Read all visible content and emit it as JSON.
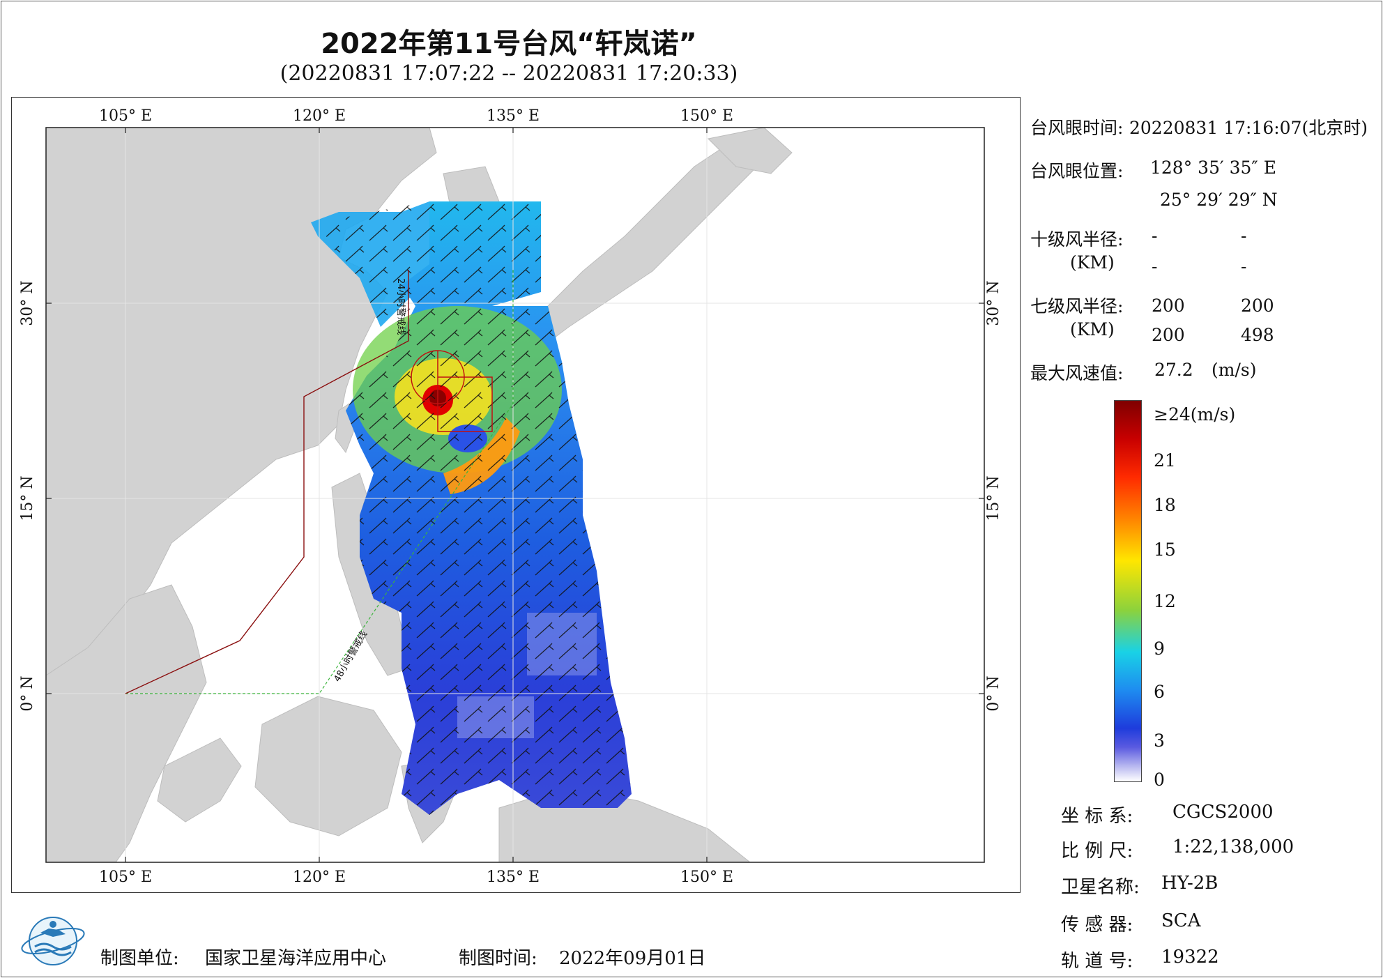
{
  "title": "2022年第11号台风“轩岚诺”",
  "subtitle": "(20220831 17:07:22 -- 20220831 17:20:33)",
  "axes": {
    "lon_ticks": [
      "105° E",
      "120° E",
      "135° E",
      "150° E"
    ],
    "lat_ticks": [
      "30° N",
      "15° N",
      "0° N"
    ]
  },
  "map_labels": {
    "warning_24h": "24小时警戒线",
    "warning_48h": "48小时警戒线"
  },
  "info": {
    "eye_time_label": "台风眼时间:",
    "eye_time_value": "20220831 17:16:07(北京时)",
    "eye_pos_label": "台风眼位置:",
    "eye_lon": "128° 35′ 35″ E",
    "eye_lat": "25° 29′ 29″ N",
    "r10_label": "十级风半径:",
    "km_label": "(KM)",
    "r10_values": [
      "-",
      "-",
      "-",
      "-"
    ],
    "r7_label": "七级风半径:",
    "r7_values": [
      "200",
      "200",
      "200",
      "498"
    ],
    "max_wind_label": "最大风速值:",
    "max_wind_value": "27.2",
    "max_wind_unit": "(m/s)"
  },
  "colorbar": {
    "labels": [
      "≥24(m/s)",
      "21",
      "18",
      "15",
      "12",
      "9",
      "6",
      "3",
      "0"
    ],
    "colors": [
      "#7f0000",
      "#e0000f",
      "#ff7a00",
      "#ffe600",
      "#7cd23c",
      "#19d2e6",
      "#1e8cf0",
      "#1e3cdc",
      "#ffffff"
    ]
  },
  "metadata": {
    "coord_label": "坐 标 系:",
    "coord_value": "CGCS2000",
    "scale_label": "比 例 尺:",
    "scale_value": "1:22,138,000",
    "satellite_label": "卫星名称:",
    "satellite_value": "HY-2B",
    "sensor_label": "传 感 器:",
    "sensor_value": "SCA",
    "orbit_label": "轨 道 号:",
    "orbit_value": "19322"
  },
  "footer": {
    "producer_label": "制图单位:",
    "producer_value": "国家卫星海洋应用中心",
    "date_label": "制图时间:",
    "date_value": "2022年09月01日"
  }
}
